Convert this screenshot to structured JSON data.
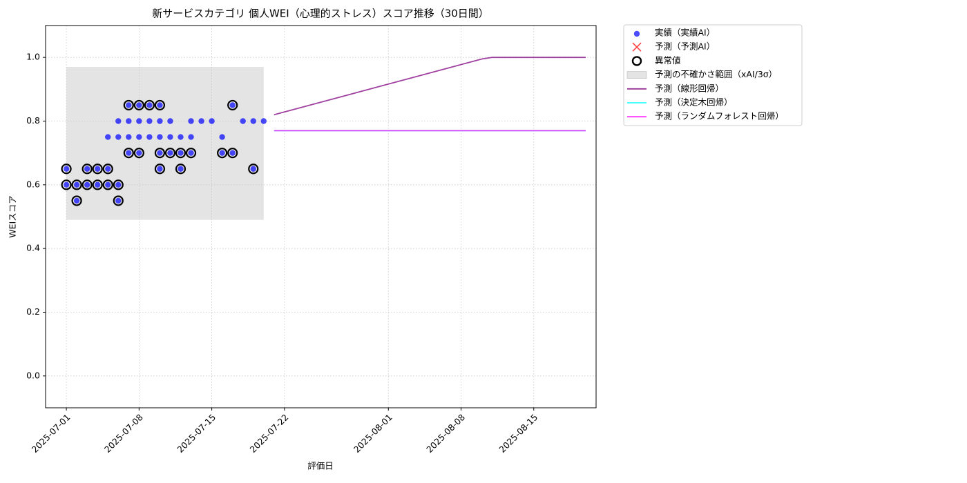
{
  "chart_data": {
    "type": "scatter",
    "title": "新サービスカテゴリ 個人WEI（心理的ストレス）スコア推移（30日間）",
    "xlabel": "評価日",
    "ylabel": "WEIスコア",
    "xlim": [
      "2025-06-29",
      "2025-08-21"
    ],
    "ylim": [
      -0.1,
      1.1
    ],
    "xticks": [
      "2025-07-01",
      "2025-07-08",
      "2025-07-15",
      "2025-07-22",
      "2025-08-01",
      "2025-08-08",
      "2025-08-15"
    ],
    "yticks": [
      {
        "value": 0,
        "label": "0.0"
      },
      0.2,
      0.4,
      0.6,
      0.8,
      {
        "value": 1,
        "label": "1.0"
      }
    ],
    "grid": true,
    "legend": "outside-upper-right",
    "series": [
      {
        "name": "実績（実績AI）",
        "type": "scatter",
        "marker": "dot",
        "color": "#0000ff",
        "x": [
          "2025-07-01",
          "2025-07-01",
          "2025-07-02",
          "2025-07-02",
          "2025-07-03",
          "2025-07-03",
          "2025-07-04",
          "2025-07-04",
          "2025-07-05",
          "2025-07-05",
          "2025-07-05",
          "2025-07-06",
          "2025-07-06",
          "2025-07-06",
          "2025-07-06",
          "2025-07-07",
          "2025-07-07",
          "2025-07-07",
          "2025-07-07",
          "2025-07-08",
          "2025-07-08",
          "2025-07-08",
          "2025-07-08",
          "2025-07-09",
          "2025-07-09",
          "2025-07-09",
          "2025-07-10",
          "2025-07-10",
          "2025-07-10",
          "2025-07-10",
          "2025-07-10",
          "2025-07-11",
          "2025-07-11",
          "2025-07-11",
          "2025-07-12",
          "2025-07-12",
          "2025-07-12",
          "2025-07-13",
          "2025-07-13",
          "2025-07-13",
          "2025-07-14",
          "2025-07-15",
          "2025-07-16",
          "2025-07-16",
          "2025-07-17",
          "2025-07-17",
          "2025-07-18",
          "2025-07-19",
          "2025-07-19",
          "2025-07-20"
        ],
        "values": [
          0.65,
          0.6,
          0.55,
          0.6,
          0.65,
          0.6,
          0.6,
          0.65,
          0.6,
          0.65,
          0.75,
          0.55,
          0.6,
          0.8,
          0.75,
          0.85,
          0.7,
          0.8,
          0.75,
          0.85,
          0.7,
          0.8,
          0.75,
          0.85,
          0.75,
          0.8,
          0.7,
          0.65,
          0.85,
          0.75,
          0.8,
          0.7,
          0.8,
          0.75,
          0.7,
          0.65,
          0.75,
          0.7,
          0.8,
          0.75,
          0.8,
          0.8,
          0.7,
          0.75,
          0.85,
          0.7,
          0.8,
          0.65,
          0.8,
          0.8
        ]
      },
      {
        "name": "予測（予測AI）",
        "type": "scatter",
        "marker": "cross",
        "color": "#ff0000",
        "x": [],
        "values": []
      },
      {
        "name": "異常値",
        "type": "scatter",
        "marker": "ring",
        "color": "#000000",
        "x": [
          "2025-07-01",
          "2025-07-01",
          "2025-07-02",
          "2025-07-02",
          "2025-07-03",
          "2025-07-03",
          "2025-07-04",
          "2025-07-04",
          "2025-07-05",
          "2025-07-05",
          "2025-07-06",
          "2025-07-06",
          "2025-07-07",
          "2025-07-07",
          "2025-07-08",
          "2025-07-08",
          "2025-07-09",
          "2025-07-10",
          "2025-07-10",
          "2025-07-10",
          "2025-07-11",
          "2025-07-12",
          "2025-07-12",
          "2025-07-13",
          "2025-07-16",
          "2025-07-17",
          "2025-07-17",
          "2025-07-19"
        ],
        "values": [
          0.65,
          0.6,
          0.55,
          0.6,
          0.65,
          0.6,
          0.6,
          0.65,
          0.6,
          0.65,
          0.55,
          0.6,
          0.85,
          0.7,
          0.85,
          0.7,
          0.85,
          0.7,
          0.65,
          0.85,
          0.7,
          0.7,
          0.65,
          0.7,
          0.7,
          0.85,
          0.7,
          0.65
        ]
      },
      {
        "name": "予測の不確かさ範囲（xAI/3σ）",
        "type": "band",
        "color": "#bbbbbb",
        "x": [
          "2025-07-01",
          "2025-07-20"
        ],
        "lower": [
          0.49,
          0.49
        ],
        "upper": [
          0.97,
          0.97
        ]
      },
      {
        "name": "予測（線形回帰）",
        "type": "line",
        "color": "#800080",
        "x": [
          "2025-07-21",
          "2025-08-10",
          "2025-08-11",
          "2025-08-20"
        ],
        "values": [
          0.82,
          0.995,
          1,
          1
        ]
      },
      {
        "name": "予測（決定木回帰）",
        "type": "line",
        "color": "#00ffff",
        "x": [
          "2025-07-21",
          "2025-08-20"
        ],
        "values": [
          0.77,
          0.77
        ]
      },
      {
        "name": "予測（ランダムフォレスト回帰）",
        "type": "line",
        "color": "#ff00ff",
        "x": [
          "2025-07-21",
          "2025-08-20"
        ],
        "values": [
          0.77,
          0.77
        ]
      }
    ]
  }
}
